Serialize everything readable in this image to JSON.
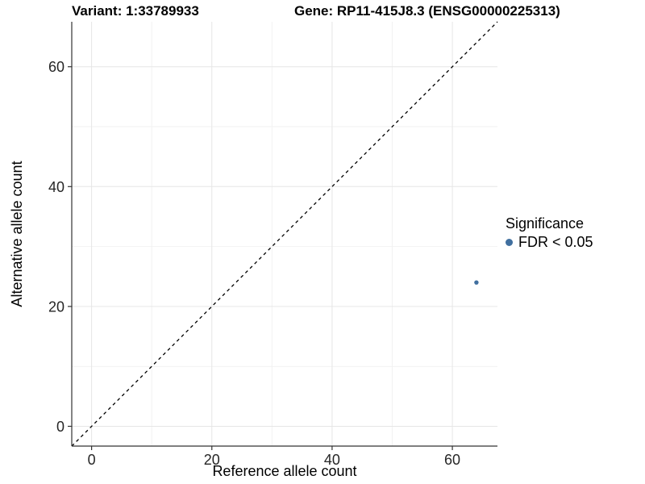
{
  "header": {
    "variant_title": "Variant: 1:33789933",
    "gene_title": "Gene: RP11-415J8.3 (ENSG00000225313)"
  },
  "chart_data": {
    "type": "scatter",
    "xlabel": "Reference allele count",
    "ylabel": "Alternative allele count",
    "xlim": [
      -3.3,
      67.5
    ],
    "ylim": [
      -3.3,
      67.5
    ],
    "x_ticks": [
      0,
      20,
      40,
      60
    ],
    "y_ticks": [
      0,
      20,
      40,
      60
    ],
    "minor_gridlines": [
      10,
      30,
      50
    ],
    "grid": true,
    "diagonal_line": {
      "equation": "y = x",
      "style": "dashed",
      "color": "#000000"
    },
    "points": [
      {
        "x": 64,
        "y": 24,
        "series": "FDR < 0.05"
      }
    ],
    "legend": {
      "title": "Significance",
      "position": "right",
      "entries": [
        {
          "label": "FDR < 0.05",
          "color": "#406f9f"
        }
      ]
    },
    "colors": {
      "point": "#406f9f",
      "grid_major": "#e6e6e6",
      "grid_minor": "#f2f2f2",
      "axis": "#333333",
      "tick_label": "#262626"
    }
  }
}
